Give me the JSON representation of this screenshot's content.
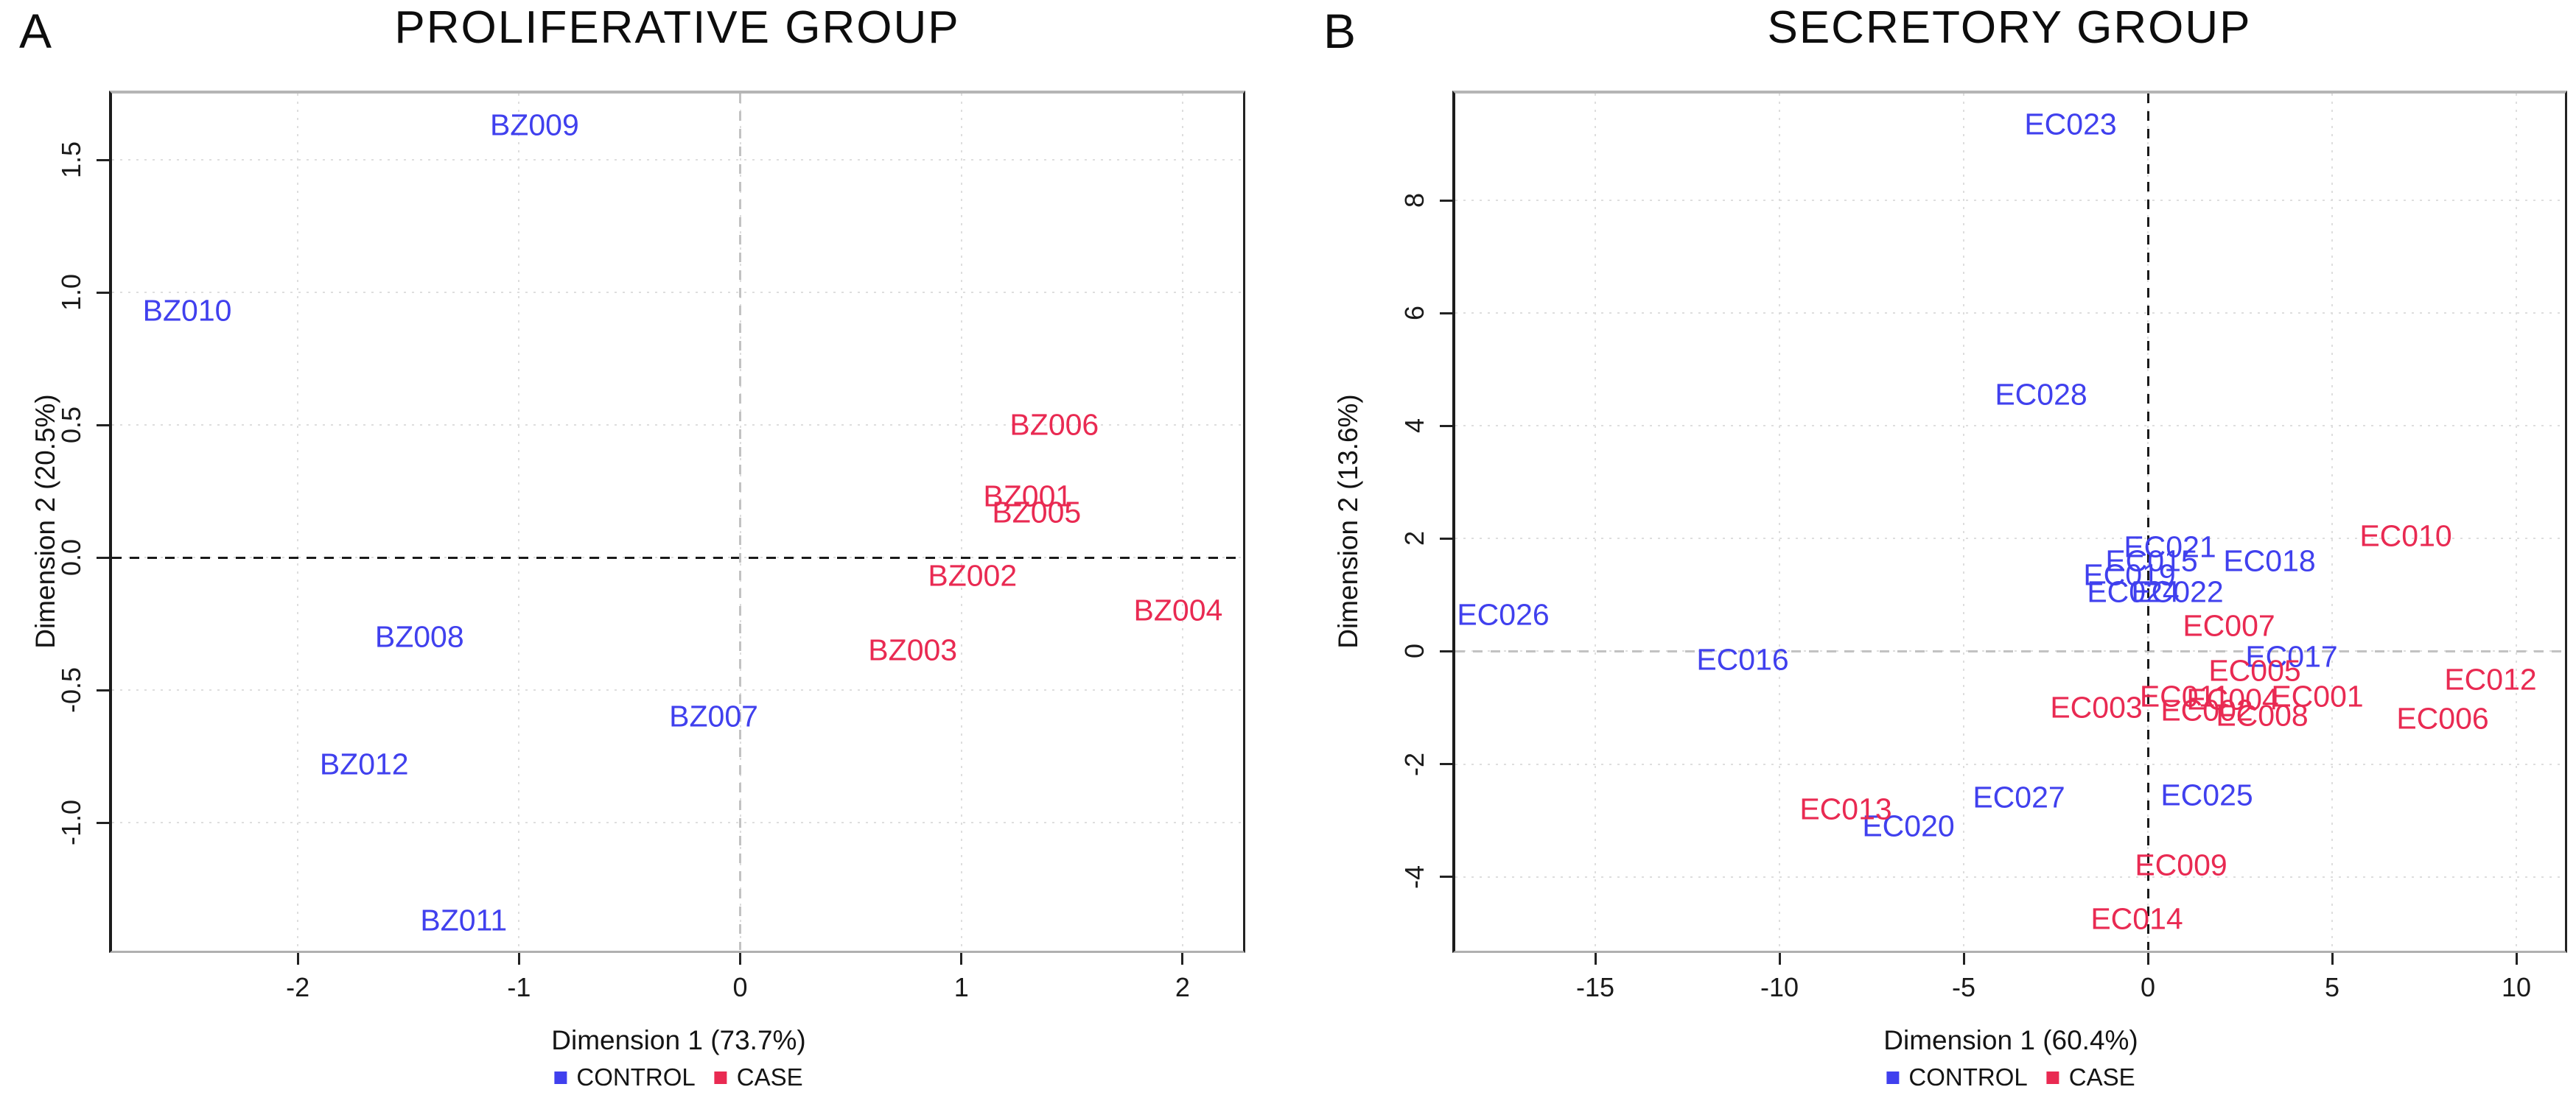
{
  "legend": {
    "control": "CONTROL",
    "case": "CASE"
  },
  "colors": {
    "control_blue": "#4040ee",
    "case_red": "#e92a52",
    "zero_line_strong": "#1a1a1a",
    "zero_line_weak": "#c2c2c2",
    "gridline": "#dedede",
    "axis_text": "#1a1a1a"
  },
  "chart_data": [
    {
      "type": "scatter",
      "id": "A",
      "panel_letter": "A",
      "title": "PROLIFERATIVE GROUP",
      "xlabel": "Dimension 1 (73.7%)",
      "ylabel": "Dimension 2 (20.5%)",
      "xlim": [
        -2.84,
        2.27
      ],
      "ylim": [
        -1.48,
        1.75
      ],
      "grid": true,
      "legend_position": "bottom",
      "xticks": [
        {
          "v": -2,
          "label": "-2"
        },
        {
          "v": -1,
          "label": "-1"
        },
        {
          "v": 0,
          "label": "0"
        },
        {
          "v": 1,
          "label": "1"
        },
        {
          "v": 2,
          "label": "2"
        }
      ],
      "yticks": [
        {
          "v": 1.5,
          "label": "1.5"
        },
        {
          "v": 1.0,
          "label": "1.0"
        },
        {
          "v": 0.5,
          "label": "0.5"
        },
        {
          "v": 0.0,
          "label": "0.0"
        },
        {
          "v": -0.5,
          "label": "-0.5"
        },
        {
          "v": -1.0,
          "label": "-1.0"
        }
      ],
      "zero_lines": {
        "horizontal": "strong",
        "vertical": "weak"
      },
      "series": [
        {
          "name": "CONTROL",
          "color_key": "control_blue",
          "points": [
            {
              "label": "BZ009",
              "x": -0.93,
              "y": 1.63
            },
            {
              "label": "BZ010",
              "x": -2.5,
              "y": 0.93
            },
            {
              "label": "BZ008",
              "x": -1.45,
              "y": -0.3
            },
            {
              "label": "BZ007",
              "x": -0.12,
              "y": -0.6
            },
            {
              "label": "BZ012",
              "x": -1.7,
              "y": -0.78
            },
            {
              "label": "BZ011",
              "x": -1.25,
              "y": -1.37
            }
          ]
        },
        {
          "name": "CASE",
          "color_key": "case_red",
          "points": [
            {
              "label": "BZ006",
              "x": 1.42,
              "y": 0.5
            },
            {
              "label": "BZ001",
              "x": 1.3,
              "y": 0.23
            },
            {
              "label": "BZ005",
              "x": 1.34,
              "y": 0.17
            },
            {
              "label": "BZ002",
              "x": 1.05,
              "y": -0.07
            },
            {
              "label": "BZ004",
              "x": 1.98,
              "y": -0.2
            },
            {
              "label": "BZ003",
              "x": 0.78,
              "y": -0.35
            }
          ]
        }
      ]
    },
    {
      "type": "scatter",
      "id": "B",
      "panel_letter": "B",
      "title": "SECRETORY GROUP",
      "xlabel": "Dimension 1 (60.4%)",
      "ylabel": "Dimension 2 (13.6%)",
      "xlim": [
        -18.8,
        11.3
      ],
      "ylim": [
        -5.3,
        9.9
      ],
      "grid": true,
      "legend_position": "bottom",
      "xticks": [
        {
          "v": -15,
          "label": "-15"
        },
        {
          "v": -10,
          "label": "-10"
        },
        {
          "v": -5,
          "label": "-5"
        },
        {
          "v": 0,
          "label": "0"
        },
        {
          "v": 5,
          "label": "5"
        },
        {
          "v": 10,
          "label": "10"
        }
      ],
      "yticks": [
        {
          "v": 8,
          "label": "8"
        },
        {
          "v": 6,
          "label": "6"
        },
        {
          "v": 4,
          "label": "4"
        },
        {
          "v": 2,
          "label": "2"
        },
        {
          "v": 0,
          "label": "0"
        },
        {
          "v": -2,
          "label": "-2"
        },
        {
          "v": -4,
          "label": "-4"
        }
      ],
      "zero_lines": {
        "horizontal": "weak",
        "vertical": "strong"
      },
      "series": [
        {
          "name": "CONTROL",
          "color_key": "control_blue",
          "points": [
            {
              "label": "EC023",
              "x": -2.1,
              "y": 9.35
            },
            {
              "label": "EC028",
              "x": -2.9,
              "y": 4.55
            },
            {
              "label": "EC026",
              "x": -17.5,
              "y": 0.65
            },
            {
              "label": "EC016",
              "x": -11.0,
              "y": -0.15
            },
            {
              "label": "EC021",
              "x": 0.6,
              "y": 1.85
            },
            {
              "label": "EC015",
              "x": 0.1,
              "y": 1.6
            },
            {
              "label": "EC019",
              "x": -0.5,
              "y": 1.35
            },
            {
              "label": "EC024",
              "x": -0.4,
              "y": 1.05
            },
            {
              "label": "EC022",
              "x": 0.8,
              "y": 1.05
            },
            {
              "label": "EC018",
              "x": 3.3,
              "y": 1.6
            },
            {
              "label": "EC017",
              "x": 3.9,
              "y": -0.1
            },
            {
              "label": "EC027",
              "x": -3.5,
              "y": -2.6
            },
            {
              "label": "EC020",
              "x": -6.5,
              "y": -3.1
            },
            {
              "label": "EC025",
              "x": 1.6,
              "y": -2.55
            }
          ]
        },
        {
          "name": "CASE",
          "color_key": "case_red",
          "points": [
            {
              "label": "EC010",
              "x": 7.0,
              "y": 2.05
            },
            {
              "label": "EC007",
              "x": 2.2,
              "y": 0.45
            },
            {
              "label": "EC005",
              "x": 2.9,
              "y": -0.35
            },
            {
              "label": "EC012",
              "x": 9.3,
              "y": -0.5
            },
            {
              "label": "EC006",
              "x": 8.0,
              "y": -1.2
            },
            {
              "label": "EC003",
              "x": -1.4,
              "y": -1.0
            },
            {
              "label": "EC011",
              "x": 1.0,
              "y": -0.8
            },
            {
              "label": "EC002",
              "x": 1.6,
              "y": -1.05
            },
            {
              "label": "EC004",
              "x": 2.3,
              "y": -0.85
            },
            {
              "label": "EC001",
              "x": 4.6,
              "y": -0.8
            },
            {
              "label": "EC008",
              "x": 3.1,
              "y": -1.15
            },
            {
              "label": "EC013",
              "x": -8.2,
              "y": -2.8
            },
            {
              "label": "EC009",
              "x": 0.9,
              "y": -3.8
            },
            {
              "label": "EC014",
              "x": -0.3,
              "y": -4.75
            }
          ]
        }
      ]
    }
  ]
}
